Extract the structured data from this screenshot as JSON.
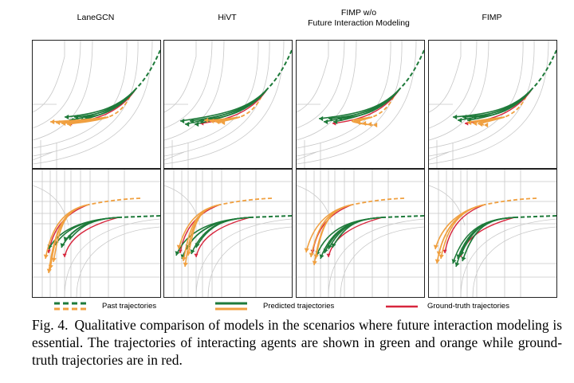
{
  "columns": [
    {
      "title": "LaneGCN"
    },
    {
      "title": "HiVT"
    },
    {
      "title": "FIMP w/o\nFuture Interaction Modeling"
    },
    {
      "title": "FIMP"
    }
  ],
  "scenarios": [
    "top",
    "bottom"
  ],
  "legend": {
    "past": "Past trajectories",
    "predicted": "Predicted trajectories",
    "ground_truth": "Ground-truth trajectories"
  },
  "colors": {
    "green": "#1e7a3a",
    "orange": "#f0a040",
    "red": "#d7263d",
    "road": "#c8c8c8"
  },
  "caption": {
    "label": "Fig. 4.",
    "text": "Qualitative comparison of models in the scenarios where future interaction modeling is essential. The trajectories of interacting agents are shown in green and orange while ground-truth trajectories are in red."
  }
}
